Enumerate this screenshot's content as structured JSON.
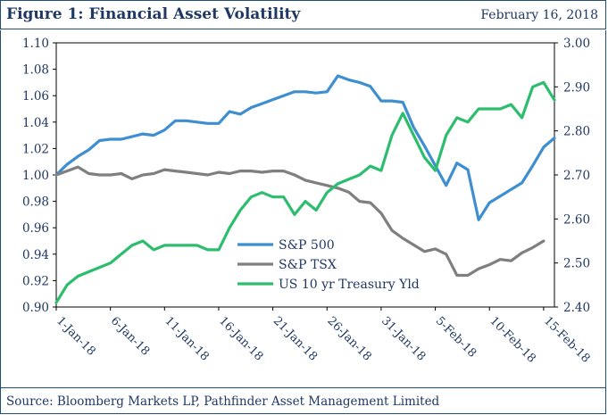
{
  "header": {
    "title": "Figure 1:  Financial Asset Volatility",
    "date": "February 16, 2018"
  },
  "footer": {
    "source": "Source: Bloomberg Markets LP, Pathfinder Asset Management Limited"
  },
  "colors": {
    "sp500": "#3e8ed0",
    "tsx": "#7f7f7f",
    "treasury": "#2dbd6e",
    "frame": "#1f4e79",
    "text": "#1f3864"
  },
  "chart_data": {
    "type": "line",
    "title": "Financial Asset Volatility",
    "x_ticks": [
      "1-Jan-18",
      "6-Jan-18",
      "11-Jan-18",
      "16-Jan-18",
      "21-Jan-18",
      "26-Jan-18",
      "31-Jan-18",
      "5-Feb-18",
      "10-Feb-18",
      "15-Feb-18"
    ],
    "x_range": [
      1,
      47
    ],
    "y_left": {
      "range": [
        0.9,
        1.1
      ],
      "ticks": [
        "0.90",
        "0.92",
        "0.94",
        "0.96",
        "0.98",
        "1.00",
        "1.02",
        "1.04",
        "1.06",
        "1.08",
        "1.10"
      ]
    },
    "y_right": {
      "range": [
        2.4,
        3.0
      ],
      "ticks": [
        "2.40",
        "2.50",
        "2.60",
        "2.70",
        "2.80",
        "2.90",
        "3.00"
      ]
    },
    "legend_position": "center-right",
    "series": [
      {
        "name": "S&P 500",
        "axis": "left",
        "color_key": "sp500",
        "points": [
          [
            1,
            1.0
          ],
          [
            2,
            1.008
          ],
          [
            3,
            1.014
          ],
          [
            4,
            1.019
          ],
          [
            5,
            1.026
          ],
          [
            6,
            1.027
          ],
          [
            7,
            1.027
          ],
          [
            8,
            1.029
          ],
          [
            9,
            1.031
          ],
          [
            10,
            1.03
          ],
          [
            11,
            1.034
          ],
          [
            12,
            1.041
          ],
          [
            13,
            1.041
          ],
          [
            14,
            1.04
          ],
          [
            15,
            1.039
          ],
          [
            16,
            1.039
          ],
          [
            17,
            1.048
          ],
          [
            18,
            1.046
          ],
          [
            19,
            1.051
          ],
          [
            20,
            1.054
          ],
          [
            21,
            1.057
          ],
          [
            22,
            1.06
          ],
          [
            23,
            1.063
          ],
          [
            24,
            1.063
          ],
          [
            25,
            1.062
          ],
          [
            26,
            1.063
          ],
          [
            27,
            1.075
          ],
          [
            28,
            1.072
          ],
          [
            29,
            1.07
          ],
          [
            30,
            1.067
          ],
          [
            31,
            1.056
          ],
          [
            32,
            1.056
          ],
          [
            33,
            1.055
          ],
          [
            34,
            1.036
          ],
          [
            35,
            1.022
          ],
          [
            36,
            1.007
          ],
          [
            37,
            0.992
          ],
          [
            38,
            1.009
          ],
          [
            39,
            1.004
          ],
          [
            40,
            0.966
          ],
          [
            41,
            0.979
          ],
          [
            42,
            0.984
          ],
          [
            43,
            0.989
          ],
          [
            44,
            0.994
          ],
          [
            45,
            1.007
          ],
          [
            46,
            1.021
          ],
          [
            47,
            1.028
          ]
        ]
      },
      {
        "name": "S&P TSX",
        "axis": "left",
        "color_key": "tsx",
        "points": [
          [
            1,
            1.0
          ],
          [
            2,
            1.003
          ],
          [
            3,
            1.006
          ],
          [
            4,
            1.001
          ],
          [
            5,
            1.0
          ],
          [
            6,
            1.0
          ],
          [
            7,
            1.001
          ],
          [
            8,
            0.997
          ],
          [
            9,
            1.0
          ],
          [
            10,
            1.001
          ],
          [
            11,
            1.004
          ],
          [
            12,
            1.003
          ],
          [
            13,
            1.002
          ],
          [
            14,
            1.001
          ],
          [
            15,
            1.0
          ],
          [
            16,
            1.002
          ],
          [
            17,
            1.001
          ],
          [
            18,
            1.003
          ],
          [
            19,
            1.003
          ],
          [
            20,
            1.002
          ],
          [
            21,
            1.003
          ],
          [
            22,
            1.003
          ],
          [
            23,
            1.0
          ],
          [
            24,
            0.996
          ],
          [
            25,
            0.994
          ],
          [
            26,
            0.992
          ],
          [
            27,
            0.99
          ],
          [
            28,
            0.987
          ],
          [
            29,
            0.98
          ],
          [
            30,
            0.979
          ],
          [
            31,
            0.971
          ],
          [
            32,
            0.958
          ],
          [
            33,
            0.952
          ],
          [
            34,
            0.947
          ],
          [
            35,
            0.942
          ],
          [
            36,
            0.944
          ],
          [
            37,
            0.94
          ],
          [
            38,
            0.924
          ],
          [
            39,
            0.924
          ],
          [
            40,
            0.929
          ],
          [
            41,
            0.932
          ],
          [
            42,
            0.936
          ],
          [
            43,
            0.935
          ],
          [
            44,
            0.941
          ],
          [
            45,
            0.945
          ],
          [
            46,
            0.95
          ]
        ]
      },
      {
        "name": "US 10 yr Treasury Yld",
        "axis": "right",
        "color_key": "treasury",
        "points": [
          [
            1,
            2.41
          ],
          [
            2,
            2.45
          ],
          [
            3,
            2.47
          ],
          [
            4,
            2.48
          ],
          [
            5,
            2.49
          ],
          [
            6,
            2.5
          ],
          [
            7,
            2.52
          ],
          [
            8,
            2.54
          ],
          [
            9,
            2.55
          ],
          [
            10,
            2.53
          ],
          [
            11,
            2.54
          ],
          [
            12,
            2.54
          ],
          [
            13,
            2.54
          ],
          [
            14,
            2.54
          ],
          [
            15,
            2.53
          ],
          [
            16,
            2.53
          ],
          [
            17,
            2.58
          ],
          [
            18,
            2.62
          ],
          [
            19,
            2.65
          ],
          [
            20,
            2.66
          ],
          [
            21,
            2.65
          ],
          [
            22,
            2.65
          ],
          [
            23,
            2.61
          ],
          [
            24,
            2.64
          ],
          [
            25,
            2.62
          ],
          [
            26,
            2.66
          ],
          [
            27,
            2.68
          ],
          [
            28,
            2.69
          ],
          [
            29,
            2.7
          ],
          [
            30,
            2.72
          ],
          [
            31,
            2.71
          ],
          [
            32,
            2.79
          ],
          [
            33,
            2.84
          ],
          [
            34,
            2.79
          ],
          [
            35,
            2.74
          ],
          [
            36,
            2.71
          ],
          [
            37,
            2.79
          ],
          [
            38,
            2.83
          ],
          [
            39,
            2.82
          ],
          [
            40,
            2.85
          ],
          [
            41,
            2.85
          ],
          [
            42,
            2.85
          ],
          [
            43,
            2.86
          ],
          [
            44,
            2.83
          ],
          [
            45,
            2.9
          ],
          [
            46,
            2.91
          ],
          [
            47,
            2.87
          ]
        ]
      }
    ]
  }
}
